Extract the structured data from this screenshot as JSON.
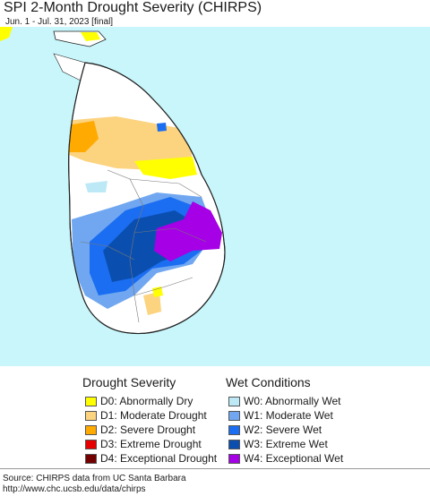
{
  "header": {
    "title": "SPI 2-Month Drought Severity (CHIRPS)",
    "subtitle": "Jun. 1 - Jul. 31, 2023 [final]"
  },
  "map": {
    "ocean_color": "#c8f6fb",
    "land_color": "#ffffff",
    "region_colors": {
      "D0": "#ffff00",
      "D1": "#fcd37f",
      "D2": "#ffaa00",
      "W0": "#bde9f6",
      "W1": "#70a7f0",
      "W2": "#1b6ef1",
      "W3": "#0a4fb0",
      "W4": "#a600e6"
    }
  },
  "legend": {
    "drought": {
      "title": "Drought Severity",
      "items": [
        {
          "label": "D0: Abnormally Dry",
          "color": "#ffff00"
        },
        {
          "label": "D1: Moderate Drought",
          "color": "#fcd37f"
        },
        {
          "label": "D2: Severe Drought",
          "color": "#ffaa00"
        },
        {
          "label": "D3: Extreme Drought",
          "color": "#e60000"
        },
        {
          "label": "D4: Exceptional Drought",
          "color": "#730000"
        }
      ]
    },
    "wet": {
      "title": "Wet Conditions",
      "items": [
        {
          "label": "W0: Abnormally Wet",
          "color": "#bde9f6"
        },
        {
          "label": "W1: Moderate Wet",
          "color": "#70a7f0"
        },
        {
          "label": "W2: Severe Wet",
          "color": "#1b6ef1"
        },
        {
          "label": "W3: Extreme Wet",
          "color": "#0a4fb0"
        },
        {
          "label": "W4: Exceptional Wet",
          "color": "#a600e6"
        }
      ]
    }
  },
  "source": {
    "line1": "Source: CHIRPS data from UC Santa Barbara",
    "line2": "http://www.chc.ucsb.edu/data/chirps"
  }
}
